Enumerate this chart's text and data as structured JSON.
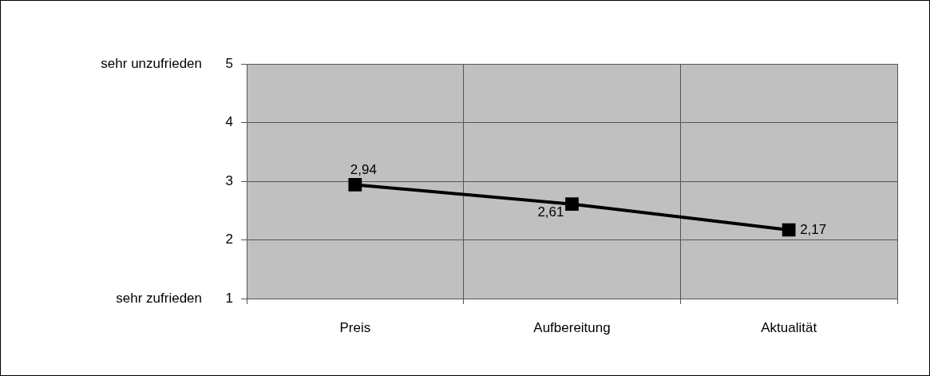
{
  "chart_data": {
    "type": "line",
    "categories": [
      "Preis",
      "Aufbereitung",
      "Aktualität"
    ],
    "series": [
      {
        "color": "#000000",
        "values": [
          2.94,
          2.61,
          2.17
        ],
        "value_labels": [
          "2,94",
          "2,61",
          "2,17"
        ]
      }
    ],
    "ylim": [
      1,
      5
    ],
    "yticks": [
      1,
      2,
      3,
      4,
      5
    ],
    "grid": true,
    "legend": false,
    "marker": "square",
    "line_style": "solid",
    "annotations": [
      "sehr unzufrieden",
      "sehr zufrieden"
    ]
  }
}
